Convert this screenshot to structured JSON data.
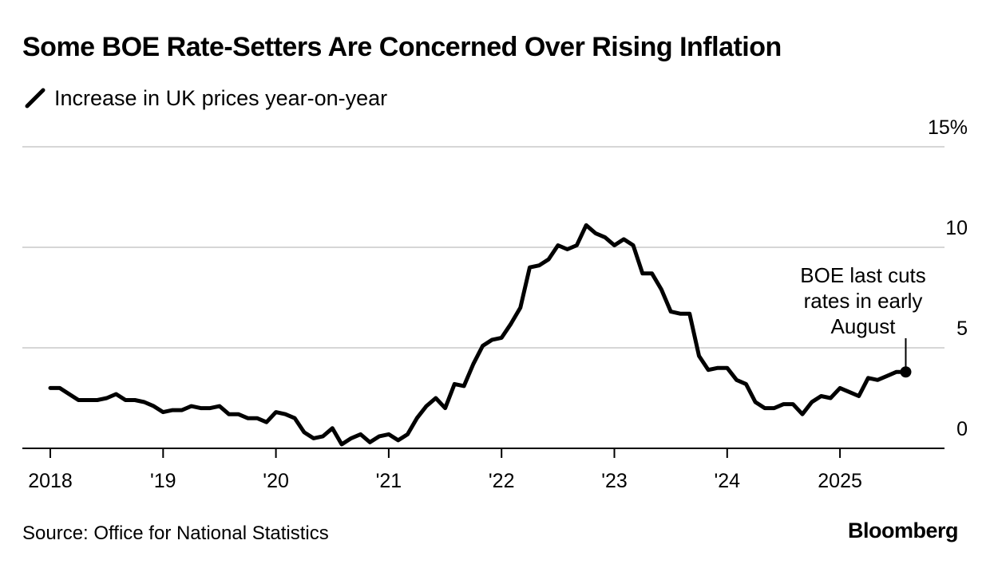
{
  "title": "Some BOE Rate-Setters Are Concerned Over Rising Inflation",
  "legend": {
    "label": "Increase in UK prices year-on-year",
    "color": "#000000"
  },
  "source": "Source: Office for National Statistics",
  "brand": "Bloomberg",
  "chart_data": {
    "type": "line",
    "title": "Some BOE Rate-Setters Are Concerned Over Rising Inflation",
    "ylabel": "",
    "xlabel": "",
    "ylim": [
      0,
      15
    ],
    "yticks": [
      {
        "value": 0,
        "label": "0"
      },
      {
        "value": 5,
        "label": "5"
      },
      {
        "value": 10,
        "label": "10"
      },
      {
        "value": 15,
        "label": "15%"
      }
    ],
    "xticks": [
      {
        "value": 2018.0,
        "label": "2018"
      },
      {
        "value": 2019.0,
        "label": "'19"
      },
      {
        "value": 2020.0,
        "label": "'20"
      },
      {
        "value": 2021.0,
        "label": "'21"
      },
      {
        "value": 2022.0,
        "label": "'22"
      },
      {
        "value": 2023.0,
        "label": "'23"
      },
      {
        "value": 2024.0,
        "label": "'24"
      },
      {
        "value": 2025.0,
        "label": "2025"
      }
    ],
    "x_range": [
      2017.75,
      2026.2
    ],
    "series": [
      {
        "name": "Increase in UK prices year-on-year",
        "color": "#000000",
        "start": [
          2018,
          1
        ],
        "values": [
          3.0,
          3.0,
          2.7,
          2.4,
          2.4,
          2.4,
          2.5,
          2.7,
          2.4,
          2.4,
          2.3,
          2.1,
          1.8,
          1.9,
          1.9,
          2.1,
          2.0,
          2.0,
          2.1,
          1.7,
          1.7,
          1.5,
          1.5,
          1.3,
          1.8,
          1.7,
          1.5,
          0.8,
          0.5,
          0.6,
          1.0,
          0.2,
          0.5,
          0.7,
          0.3,
          0.6,
          0.7,
          0.4,
          0.7,
          1.5,
          2.1,
          2.5,
          2.0,
          3.2,
          3.1,
          4.2,
          5.1,
          5.4,
          5.5,
          6.2,
          7.0,
          9.0,
          9.1,
          9.4,
          10.1,
          9.9,
          10.1,
          11.1,
          10.7,
          10.5,
          10.1,
          10.4,
          10.1,
          8.7,
          8.7,
          7.9,
          6.8,
          6.7,
          6.7,
          4.6,
          3.9,
          4.0,
          4.0,
          3.4,
          3.2,
          2.3,
          2.0,
          2.0,
          2.2,
          2.2,
          1.7,
          2.3,
          2.6,
          2.5,
          3.0,
          2.8,
          2.6,
          3.5,
          3.4,
          3.6,
          3.8,
          3.8
        ]
      }
    ],
    "annotation": {
      "lines": [
        "BOE last cuts",
        "rates in early",
        "August"
      ],
      "x": 2025.583,
      "y": 3.8
    }
  }
}
